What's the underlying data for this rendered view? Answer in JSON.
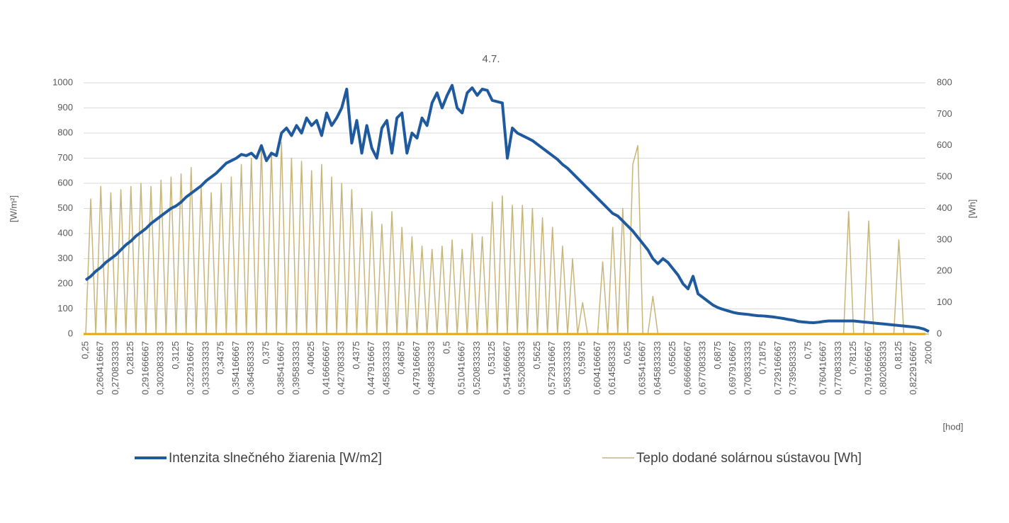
{
  "chart_data": {
    "type": "line",
    "title": "4.7.",
    "y_label": "[W/m²]",
    "y2_label": "[Wh]",
    "x_label": "[hod]",
    "categories": [
      "0,25",
      null,
      null,
      "0,260416667",
      null,
      null,
      "0,270833333",
      null,
      null,
      "0,28125",
      null,
      null,
      "0,291666667",
      null,
      null,
      "0,302083333",
      null,
      null,
      "0,3125",
      null,
      null,
      "0,322916667",
      null,
      null,
      "0,333333333",
      null,
      null,
      "0,34375",
      null,
      null,
      "0,354166667",
      null,
      null,
      "0,364583333",
      null,
      null,
      "0,375",
      null,
      null,
      "0,385416667",
      null,
      null,
      "0,395833333",
      null,
      null,
      "0,40625",
      null,
      null,
      "0,416666667",
      null,
      null,
      "0,427083333",
      null,
      null,
      "0,4375",
      null,
      null,
      "0,447916667",
      null,
      null,
      "0,458333333",
      null,
      null,
      "0,46875",
      null,
      null,
      "0,479166667",
      null,
      null,
      "0,489583333",
      null,
      null,
      "0,5",
      null,
      null,
      "0,510416667",
      null,
      null,
      "0,520833333",
      null,
      null,
      "0,53125",
      null,
      null,
      "0,541666667",
      null,
      null,
      "0,552083333",
      null,
      null,
      "0,5625",
      null,
      null,
      "0,572916667",
      null,
      null,
      "0,583333333",
      null,
      null,
      "0,59375",
      null,
      null,
      "0,604166667",
      null,
      null,
      "0,614583333",
      null,
      null,
      "0,625",
      null,
      null,
      "0,635416667",
      null,
      null,
      "0,645833333",
      null,
      null,
      "0,65625",
      null,
      null,
      "0,666666667",
      null,
      null,
      "0,677083333",
      null,
      null,
      "0,6875",
      null,
      null,
      "0,697916667",
      null,
      null,
      "0,708333333",
      null,
      null,
      "0,71875",
      null,
      null,
      "0,729166667",
      null,
      null,
      "0,739583333",
      null,
      null,
      "0,75",
      null,
      null,
      "0,760416667",
      null,
      null,
      "0,770833333",
      null,
      null,
      "0,78125",
      null,
      null,
      "0,791666667",
      null,
      null,
      "0,802083333",
      null,
      null,
      "0,8125",
      null,
      null,
      "0,822916667",
      null,
      null,
      "20:00"
    ],
    "series": [
      {
        "name": "Intenzita slnečného žiarenia  [W/m2]",
        "color": "#1f5a9e",
        "axis": "y",
        "values": [
          215,
          230,
          250,
          265,
          285,
          300,
          315,
          335,
          355,
          370,
          390,
          405,
          420,
          440,
          455,
          470,
          485,
          500,
          510,
          525,
          545,
          560,
          575,
          590,
          610,
          625,
          640,
          660,
          680,
          690,
          700,
          715,
          710,
          720,
          700,
          750,
          690,
          720,
          710,
          800,
          820,
          790,
          830,
          800,
          860,
          830,
          850,
          790,
          880,
          830,
          860,
          900,
          975,
          760,
          850,
          720,
          830,
          740,
          700,
          820,
          850,
          720,
          860,
          880,
          720,
          800,
          780,
          860,
          830,
          920,
          960,
          900,
          950,
          990,
          900,
          880,
          960,
          980,
          950,
          975,
          970,
          930,
          925,
          920,
          700,
          820,
          800,
          790,
          780,
          770,
          755,
          740,
          725,
          710,
          695,
          675,
          660,
          640,
          620,
          600,
          580,
          560,
          540,
          520,
          500,
          480,
          470,
          450,
          430,
          410,
          385,
          360,
          335,
          300,
          280,
          300,
          285,
          260,
          235,
          200,
          180,
          230,
          160,
          145,
          130,
          115,
          105,
          98,
          92,
          86,
          82,
          80,
          78,
          75,
          73,
          72,
          70,
          68,
          65,
          62,
          58,
          55,
          50,
          48,
          46,
          45,
          47,
          50,
          52,
          52,
          52,
          52,
          52,
          52,
          50,
          48,
          46,
          44,
          42,
          40,
          38,
          36,
          34,
          32,
          30,
          28,
          25,
          20,
          10
        ]
      },
      {
        "name": "Teplo dodané solárnou sústavou [Wh]",
        "color": "#c8b57a",
        "axis": "y2",
        "values": [
          0,
          430,
          0,
          470,
          0,
          450,
          0,
          460,
          0,
          470,
          0,
          480,
          0,
          470,
          0,
          490,
          0,
          500,
          0,
          510,
          0,
          530,
          0,
          470,
          0,
          450,
          0,
          480,
          0,
          500,
          0,
          540,
          0,
          560,
          0,
          600,
          0,
          580,
          0,
          610,
          0,
          560,
          0,
          550,
          0,
          520,
          0,
          540,
          0,
          500,
          0,
          480,
          0,
          460,
          0,
          400,
          0,
          390,
          0,
          350,
          0,
          390,
          0,
          340,
          0,
          310,
          0,
          280,
          0,
          270,
          0,
          280,
          0,
          300,
          0,
          270,
          0,
          320,
          0,
          310,
          0,
          420,
          0,
          440,
          0,
          410,
          0,
          410,
          0,
          400,
          0,
          370,
          0,
          340,
          0,
          280,
          0,
          240,
          0,
          100,
          0,
          0,
          0,
          230,
          0,
          340,
          0,
          400,
          0,
          540,
          600,
          0,
          0,
          120,
          0,
          0,
          0,
          0,
          0,
          0,
          0,
          0,
          0,
          0,
          0,
          0,
          0,
          0,
          0,
          0,
          0,
          0,
          0,
          0,
          0,
          0,
          0,
          0,
          0,
          0,
          0,
          0,
          0,
          0,
          0,
          0,
          0,
          0,
          0,
          0,
          0,
          0,
          390,
          0,
          0,
          0,
          360,
          0,
          0,
          0,
          0,
          0,
          300,
          0,
          0,
          0,
          0,
          0,
          0
        ]
      }
    ],
    "ylim": [
      0,
      1000
    ],
    "yticks": [
      0,
      100,
      200,
      300,
      400,
      500,
      600,
      700,
      800,
      900,
      1000
    ],
    "y2lim": [
      0,
      800
    ],
    "y2ticks": [
      0,
      100,
      200,
      300,
      400,
      500,
      600,
      700,
      800
    ],
    "grid": true
  }
}
